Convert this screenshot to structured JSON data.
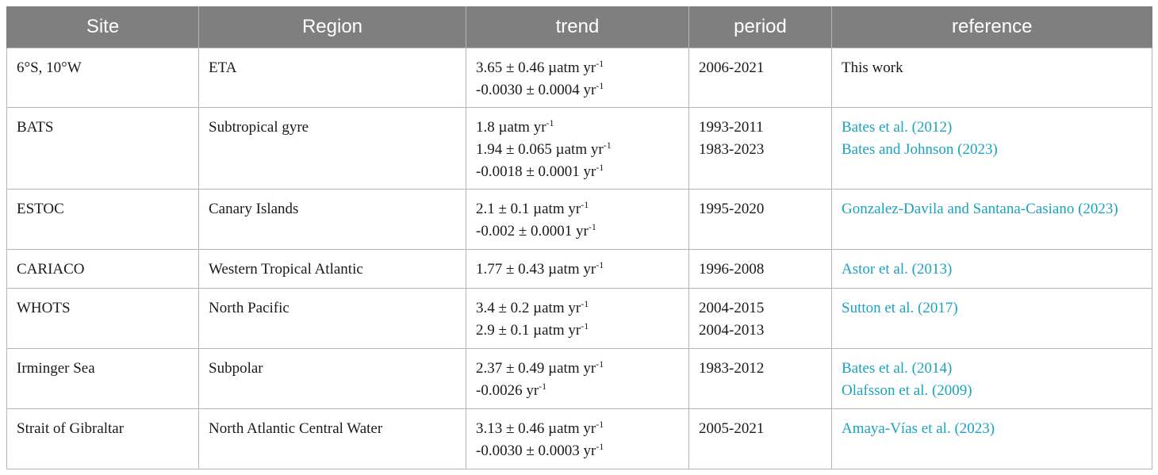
{
  "headers": [
    "Site",
    "Region",
    "trend",
    "period",
    "reference"
  ],
  "rows": [
    {
      "site": "6°S, 10°W",
      "region": "ETA",
      "trend": [
        {
          "text": "3.65 ± 0.46 µatm yr",
          "sup": "-1"
        },
        {
          "text": "-0.0030 ± 0.0004 yr",
          "sup": "-1"
        }
      ],
      "period": [
        "2006-2021"
      ],
      "reference": [
        "This work"
      ],
      "reference_is_link": false
    },
    {
      "site": "BATS",
      "region": "Subtropical gyre",
      "trend": [
        {
          "text": "1.8 µatm yr",
          "sup": "-1"
        },
        {
          "text": "1.94 ± 0.065 µatm yr",
          "sup": "-1"
        },
        {
          "text": "-0.0018 ± 0.0001 yr",
          "sup": "-1"
        }
      ],
      "period": [
        "1993-2011",
        "1983-2023"
      ],
      "reference": [
        "Bates et al. (2012)",
        "Bates and Johnson (2023)"
      ],
      "reference_is_link": true
    },
    {
      "site": "ESTOC",
      "region": "Canary Islands",
      "trend": [
        {
          "text": "2.1 ± 0.1 µatm yr",
          "sup": "-1"
        },
        {
          "text": "-0.002 ± 0.0001 yr",
          "sup": "-1"
        }
      ],
      "period": [
        "1995-2020"
      ],
      "reference": [
        "Gonzalez-Davila and Santana-Casiano (2023)"
      ],
      "reference_is_link": true
    },
    {
      "site": "CARIACO",
      "region": "Western Tropical Atlantic",
      "trend": [
        {
          "text": "1.77 ± 0.43 µatm yr",
          "sup": "-1"
        }
      ],
      "period": [
        "1996-2008"
      ],
      "reference": [
        "Astor et al. (2013)"
      ],
      "reference_is_link": true
    },
    {
      "site": "WHOTS",
      "region": "North Pacific",
      "trend": [
        {
          "text": "3.4 ± 0.2 µatm yr",
          "sup": "-1"
        },
        {
          "text": "2.9 ± 0.1 µatm yr",
          "sup": "-1"
        }
      ],
      "period": [
        "2004-2015",
        "2004-2013"
      ],
      "reference": [
        "Sutton et al. (2017)"
      ],
      "reference_is_link": true
    },
    {
      "site": "Irminger Sea",
      "region": "Subpolar",
      "trend": [
        {
          "text": "2.37 ± 0.49 µatm yr",
          "sup": "-1"
        },
        {
          "text": "-0.0026 yr",
          "sup": "-1"
        }
      ],
      "period": [
        "1983-2012"
      ],
      "reference": [
        "Bates et al. (2014)",
        "Olafsson et al. (2009)"
      ],
      "reference_is_link": true
    },
    {
      "site": "Strait of Gibraltar",
      "region": "North Atlantic Central Water",
      "trend": [
        {
          "text": "3.13 ± 0.46 µatm yr",
          "sup": "-1"
        },
        {
          "text": "-0.0030 ± 0.0003 yr",
          "sup": "-1"
        }
      ],
      "period": [
        "2005-2021"
      ],
      "reference": [
        "Amaya-Vías et al. (2023)"
      ],
      "reference_is_link": true
    }
  ]
}
